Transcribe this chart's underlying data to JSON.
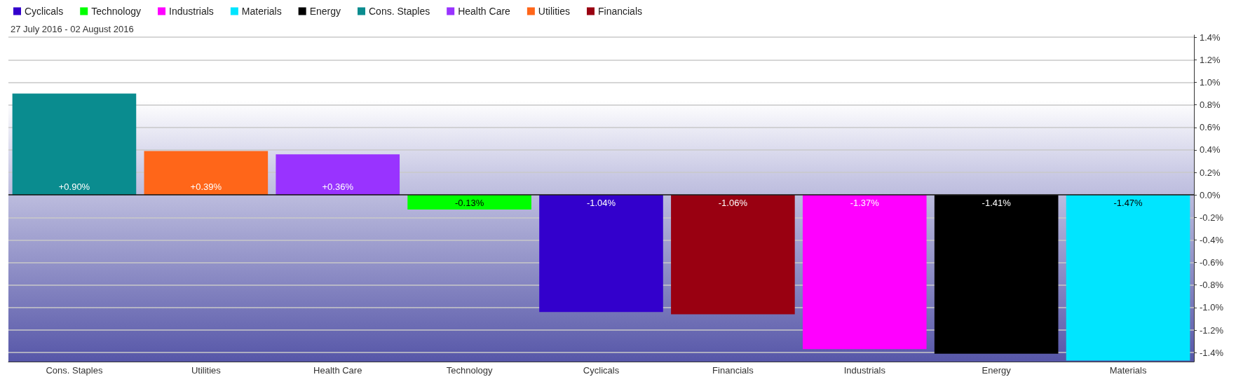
{
  "chart_data": {
    "type": "bar",
    "subtitle": "27 July 2016 - 02 August 2016",
    "categories": [
      "Cons. Staples",
      "Utilities",
      "Health Care",
      "Technology",
      "Cyclicals",
      "Financials",
      "Industrials",
      "Energy",
      "Materials"
    ],
    "series": [
      {
        "name": "Cyclicals",
        "color": "#3300cc",
        "values": [
          null,
          null,
          null,
          null,
          -1.04,
          null,
          null,
          null,
          null
        ],
        "value_labels": [
          null,
          null,
          null,
          null,
          "-1.04%",
          null,
          null,
          null,
          null
        ]
      },
      {
        "name": "Technology",
        "color": "#00ff00",
        "values": [
          null,
          null,
          null,
          -0.13,
          null,
          null,
          null,
          null,
          null
        ],
        "value_labels": [
          null,
          null,
          null,
          "-0.13%",
          null,
          null,
          null,
          null,
          null
        ]
      },
      {
        "name": "Industrials",
        "color": "#ff00ff",
        "values": [
          null,
          null,
          null,
          null,
          null,
          null,
          -1.37,
          null,
          null
        ],
        "value_labels": [
          null,
          null,
          null,
          null,
          null,
          null,
          "-1.37%",
          null,
          null
        ]
      },
      {
        "name": "Materials",
        "color": "#00e5ff",
        "values": [
          null,
          null,
          null,
          null,
          null,
          null,
          null,
          null,
          -1.47
        ],
        "value_labels": [
          null,
          null,
          null,
          null,
          null,
          null,
          null,
          null,
          "-1.47%"
        ]
      },
      {
        "name": "Energy",
        "color": "#000000",
        "values": [
          null,
          null,
          null,
          null,
          null,
          null,
          null,
          -1.41,
          null
        ],
        "value_labels": [
          null,
          null,
          null,
          null,
          null,
          null,
          null,
          "-1.41%",
          null
        ]
      },
      {
        "name": "Cons. Staples",
        "color": "#0a8c8f",
        "values": [
          0.9,
          null,
          null,
          null,
          null,
          null,
          null,
          null,
          null
        ],
        "value_labels": [
          "+0.90%",
          null,
          null,
          null,
          null,
          null,
          null,
          null,
          null
        ]
      },
      {
        "name": "Health Care",
        "color": "#9933ff",
        "values": [
          null,
          null,
          0.36,
          null,
          null,
          null,
          null,
          null,
          null
        ],
        "value_labels": [
          null,
          null,
          "+0.36%",
          null,
          null,
          null,
          null,
          null,
          null
        ]
      },
      {
        "name": "Utilities",
        "color": "#ff6619",
        "values": [
          null,
          0.39,
          null,
          null,
          null,
          null,
          null,
          null,
          null
        ],
        "value_labels": [
          null,
          "+0.39%",
          null,
          null,
          null,
          null,
          null,
          null,
          null
        ]
      },
      {
        "name": "Financials",
        "color": "#990011",
        "values": [
          null,
          null,
          null,
          null,
          null,
          -1.06,
          null,
          null,
          null
        ],
        "value_labels": [
          null,
          null,
          null,
          null,
          null,
          "-1.06%",
          null,
          null,
          null
        ]
      }
    ],
    "ylim": [
      -1.48,
      1.42
    ],
    "yticks": [
      {
        "value": -1.4,
        "label": "-1.4%"
      },
      {
        "value": -1.2,
        "label": "-1.2%"
      },
      {
        "value": -1.0,
        "label": "-1.0%"
      },
      {
        "value": -0.8,
        "label": "-0.8%"
      },
      {
        "value": -0.6,
        "label": "-0.6%"
      },
      {
        "value": -0.4,
        "label": "-0.4%"
      },
      {
        "value": -0.2,
        "label": "-0.2%"
      },
      {
        "value": 0,
        "label": "0.0%"
      },
      {
        "value": 0.2,
        "label": "0.2%"
      },
      {
        "value": 0.4,
        "label": "0.4%"
      },
      {
        "value": 0.6,
        "label": "0.6%"
      },
      {
        "value": 0.8,
        "label": "0.8%"
      },
      {
        "value": 1.0,
        "label": "1.0%"
      },
      {
        "value": 1.2,
        "label": "1.2%"
      },
      {
        "value": 1.4,
        "label": "1.4%"
      }
    ],
    "grid": "y",
    "legend": "top left"
  }
}
